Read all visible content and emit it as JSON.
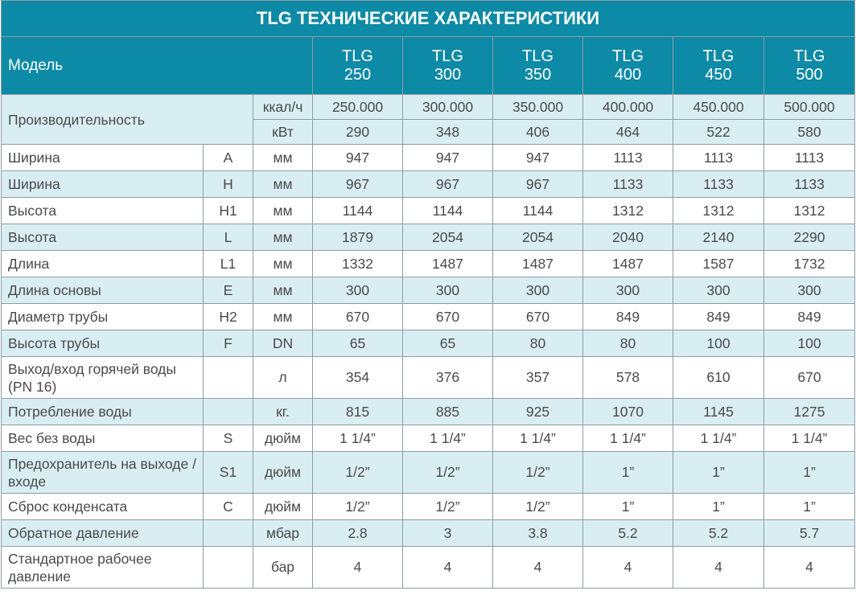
{
  "table": {
    "title": "TLG ТЕХНИЧЕСКИЕ ХАРАКТЕРИСТИКИ",
    "model_label": "Модель",
    "models": [
      {
        "name": "TLG",
        "num": "250"
      },
      {
        "name": "TLG",
        "num": "300"
      },
      {
        "name": "TLG",
        "num": "350"
      },
      {
        "name": "TLG",
        "num": "400"
      },
      {
        "name": "TLG",
        "num": "450"
      },
      {
        "name": "TLG",
        "num": "500"
      }
    ],
    "capacity": {
      "label": "Производительность",
      "rows": [
        {
          "unit": "ккал/ч",
          "values": [
            "250.000",
            "300.000",
            "350.000",
            "400.000",
            "450.000",
            "500.000"
          ]
        },
        {
          "unit": "кВт",
          "values": [
            "290",
            "348",
            "406",
            "464",
            "522",
            "580"
          ]
        }
      ]
    },
    "rows": [
      {
        "param": "Ширина",
        "symbol": "A",
        "unit": "мм",
        "values": [
          "947",
          "947",
          "947",
          "1113",
          "1113",
          "1113"
        ]
      },
      {
        "param": "Ширина",
        "symbol": "H",
        "unit": "мм",
        "values": [
          "967",
          "967",
          "967",
          "1133",
          "1133",
          "1133"
        ]
      },
      {
        "param": "Высота",
        "symbol": "H1",
        "unit": "мм",
        "values": [
          "1144",
          "1144",
          "1144",
          "1312",
          "1312",
          "1312"
        ]
      },
      {
        "param": "Высота",
        "symbol": "L",
        "unit": "мм",
        "values": [
          "1879",
          "2054",
          "2054",
          "2040",
          "2140",
          "2290"
        ]
      },
      {
        "param": "Длина",
        "symbol": "L1",
        "unit": "мм",
        "values": [
          "1332",
          "1487",
          "1487",
          "1487",
          "1587",
          "1732"
        ]
      },
      {
        "param": "Длина основы",
        "symbol": "E",
        "unit": "мм",
        "values": [
          "300",
          "300",
          "300",
          "300",
          "300",
          "300"
        ]
      },
      {
        "param": "Диаметр трубы",
        "symbol": "H2",
        "unit": "мм",
        "values": [
          "670",
          "670",
          "670",
          "849",
          "849",
          "849"
        ]
      },
      {
        "param": "Высота трубы",
        "symbol": "F",
        "unit": "DN",
        "values": [
          "65",
          "65",
          "80",
          "80",
          "100",
          "100"
        ]
      },
      {
        "param": "Выход/вход горячей воды (PN 16)",
        "symbol": "",
        "unit": "л",
        "values": [
          "354",
          "376",
          "357",
          "578",
          "610",
          "670"
        ]
      },
      {
        "param": "Потребление воды",
        "symbol": "",
        "unit": "кг.",
        "values": [
          "815",
          "885",
          "925",
          "1070",
          "1145",
          "1275"
        ]
      },
      {
        "param": "Вес без воды",
        "symbol": "S",
        "unit": "дюйм",
        "values": [
          "1 1/4”",
          "1 1/4”",
          "1 1/4”",
          "1 1/4”",
          "1 1/4”",
          "1 1/4”"
        ]
      },
      {
        "param": "Предохранитель на выходе / входе",
        "symbol": "S1",
        "unit": "дюйм",
        "values": [
          "1/2”",
          "1/2”",
          "1/2”",
          "1”",
          "1”",
          "1”"
        ]
      },
      {
        "param": "Сброс конденсата",
        "symbol": "C",
        "unit": "дюйм",
        "values": [
          "1/2”",
          "1/2”",
          "1/2”",
          "1”",
          "1”",
          "1”"
        ]
      },
      {
        "param": "Обратное давление",
        "symbol": "",
        "unit": "мбар",
        "values": [
          "2.8",
          "3",
          "3.8",
          "5.2",
          "5.2",
          "5.7"
        ]
      },
      {
        "param": "Стандартное рабочее давление",
        "symbol": "",
        "unit": "бар",
        "values": [
          "4",
          "4",
          "4",
          "4",
          "4",
          "4"
        ]
      }
    ]
  },
  "colors": {
    "header_bg": "#0d8aa6",
    "stripe_bg": "#d8eef3",
    "text": "#4a4a4a",
    "grid": "#8f9ca3"
  }
}
